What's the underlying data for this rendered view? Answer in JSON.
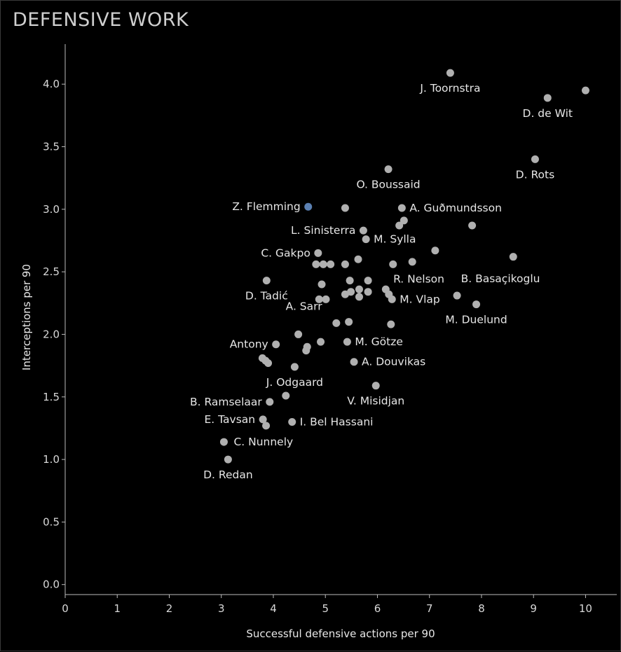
{
  "chart_data": {
    "type": "scatter",
    "title": "DEFENSIVE WORK",
    "xlabel": "Successful defensive actions per 90",
    "ylabel": "Interceptions per 90",
    "xlim": [
      0,
      10.6
    ],
    "ylim": [
      -0.08,
      4.32
    ],
    "x_ticks": [
      0,
      1,
      2,
      3,
      4,
      5,
      6,
      7,
      8,
      9,
      10
    ],
    "y_ticks": [
      0.0,
      0.5,
      1.0,
      1.5,
      2.0,
      2.5,
      3.0,
      3.5,
      4.0
    ],
    "y_tick_labels": [
      "0.0",
      "0.5",
      "1.0",
      "1.5",
      "2.0",
      "2.5",
      "3.0",
      "3.5",
      "4.0"
    ],
    "grid": false,
    "colors": {
      "point": "#b0b0b0",
      "highlight": "#5b80b2",
      "background": "#000000",
      "axis": "#bbbbbb"
    },
    "points": [
      {
        "x": 7.4,
        "y": 4.09,
        "label": "J. Toornstra",
        "anchor": "middle",
        "ldx": 0,
        "ldy": 22
      },
      {
        "x": 9.27,
        "y": 3.89,
        "label": "D. de Wit",
        "anchor": "middle",
        "ldx": 0,
        "ldy": 22
      },
      {
        "x": 10.0,
        "y": 3.95,
        "label": ""
      },
      {
        "x": 9.03,
        "y": 3.4,
        "label": "D. Rots",
        "anchor": "middle",
        "ldx": 0,
        "ldy": 22
      },
      {
        "x": 6.21,
        "y": 3.32,
        "label": "O. Boussaid",
        "anchor": "middle",
        "ldx": 0,
        "ldy": 22
      },
      {
        "x": 4.67,
        "y": 3.02,
        "label": "Z. Flemming",
        "anchor": "end",
        "ldx": -11,
        "ldy": 0,
        "highlight": true
      },
      {
        "x": 5.38,
        "y": 3.01,
        "label": ""
      },
      {
        "x": 6.47,
        "y": 3.01,
        "label": "A. Guðmundsson",
        "anchor": "start",
        "ldx": 11,
        "ldy": 0
      },
      {
        "x": 6.51,
        "y": 2.91,
        "label": ""
      },
      {
        "x": 6.42,
        "y": 2.87,
        "label": ""
      },
      {
        "x": 7.82,
        "y": 2.87,
        "label": ""
      },
      {
        "x": 5.73,
        "y": 2.83,
        "label": "L. Sinisterra",
        "anchor": "end",
        "ldx": -11,
        "ldy": 0
      },
      {
        "x": 5.78,
        "y": 2.76,
        "label": "M. Sylla",
        "anchor": "start",
        "ldx": 11,
        "ldy": 0
      },
      {
        "x": 4.86,
        "y": 2.65,
        "label": "C. Gakpo",
        "anchor": "end",
        "ldx": -11,
        "ldy": 0
      },
      {
        "x": 7.11,
        "y": 2.67,
        "label": ""
      },
      {
        "x": 8.61,
        "y": 2.62,
        "label": ""
      },
      {
        "x": 5.63,
        "y": 2.6,
        "label": ""
      },
      {
        "x": 6.67,
        "y": 2.58,
        "label": ""
      },
      {
        "x": 4.82,
        "y": 2.56,
        "label": ""
      },
      {
        "x": 4.96,
        "y": 2.56,
        "label": ""
      },
      {
        "x": 5.1,
        "y": 2.56,
        "label": ""
      },
      {
        "x": 5.38,
        "y": 2.56,
        "label": ""
      },
      {
        "x": 6.3,
        "y": 2.56,
        "label": ""
      },
      {
        "x": 3.87,
        "y": 2.43,
        "label": "D. Tadić",
        "anchor": "middle",
        "ldx": 0,
        "ldy": 22
      },
      {
        "x": 5.47,
        "y": 2.43,
        "label": ""
      },
      {
        "x": 5.82,
        "y": 2.43,
        "label": "R. Nelson",
        "anchor": "start",
        "ldx": 36,
        "ldy": -2
      },
      {
        "x": 4.93,
        "y": 2.4,
        "label": ""
      },
      {
        "x": 6.16,
        "y": 2.36,
        "label": ""
      },
      {
        "x": 5.65,
        "y": 2.36,
        "label": ""
      },
      {
        "x": 5.49,
        "y": 2.34,
        "label": ""
      },
      {
        "x": 5.82,
        "y": 2.34,
        "label": ""
      },
      {
        "x": 5.38,
        "y": 2.32,
        "label": ""
      },
      {
        "x": 6.22,
        "y": 2.32,
        "label": ""
      },
      {
        "x": 7.53,
        "y": 2.31,
        "label": "B. Basaçikoglu",
        "anchor": "middle",
        "ldx": 62,
        "ldy": -24
      },
      {
        "x": 5.65,
        "y": 2.3,
        "label": ""
      },
      {
        "x": 4.88,
        "y": 2.28,
        "label": ""
      },
      {
        "x": 5.01,
        "y": 2.28,
        "label": ""
      },
      {
        "x": 6.28,
        "y": 2.28,
        "label": "M. Vlap",
        "anchor": "start",
        "ldx": 11,
        "ldy": 0
      },
      {
        "x": 7.9,
        "y": 2.24,
        "label": "M. Duelund",
        "anchor": "middle",
        "ldx": 0,
        "ldy": 22
      },
      {
        "x": 5.45,
        "y": 2.1,
        "label": "A. Sarr",
        "anchor": "middle",
        "ldx": -64,
        "ldy": -22
      },
      {
        "x": 5.21,
        "y": 2.09,
        "label": ""
      },
      {
        "x": 6.26,
        "y": 2.08,
        "label": ""
      },
      {
        "x": 4.48,
        "y": 2.0,
        "label": ""
      },
      {
        "x": 4.05,
        "y": 1.92,
        "label": "Antony",
        "anchor": "end",
        "ldx": -11,
        "ldy": 0
      },
      {
        "x": 4.91,
        "y": 1.94,
        "label": ""
      },
      {
        "x": 5.42,
        "y": 1.94,
        "label": "M. Götze",
        "anchor": "start",
        "ldx": 11,
        "ldy": 0
      },
      {
        "x": 4.65,
        "y": 1.9,
        "label": ""
      },
      {
        "x": 4.63,
        "y": 1.87,
        "label": ""
      },
      {
        "x": 3.79,
        "y": 1.81,
        "label": ""
      },
      {
        "x": 3.85,
        "y": 1.79,
        "label": ""
      },
      {
        "x": 3.9,
        "y": 1.77,
        "label": ""
      },
      {
        "x": 5.55,
        "y": 1.78,
        "label": "A. Douvikas",
        "anchor": "start",
        "ldx": 11,
        "ldy": 0
      },
      {
        "x": 4.41,
        "y": 1.74,
        "label": "J. Odgaard",
        "anchor": "middle",
        "ldx": 0,
        "ldy": 22
      },
      {
        "x": 5.97,
        "y": 1.59,
        "label": "V. Misidjan",
        "anchor": "middle",
        "ldx": 0,
        "ldy": 22
      },
      {
        "x": 4.24,
        "y": 1.51,
        "label": ""
      },
      {
        "x": 3.93,
        "y": 1.46,
        "label": "B. Ramselaar",
        "anchor": "end",
        "ldx": -11,
        "ldy": 0
      },
      {
        "x": 3.8,
        "y": 1.32,
        "label": "E. Tavsan",
        "anchor": "end",
        "ldx": -11,
        "ldy": 0
      },
      {
        "x": 4.36,
        "y": 1.3,
        "label": "I. Bel Hassani",
        "anchor": "start",
        "ldx": 11,
        "ldy": 0
      },
      {
        "x": 3.86,
        "y": 1.27,
        "label": ""
      },
      {
        "x": 3.05,
        "y": 1.14,
        "label": "C. Nunnely",
        "anchor": "start",
        "ldx": 14,
        "ldy": 0
      },
      {
        "x": 3.13,
        "y": 1.0,
        "label": "D. Redan",
        "anchor": "middle",
        "ldx": 0,
        "ldy": 22
      }
    ]
  }
}
